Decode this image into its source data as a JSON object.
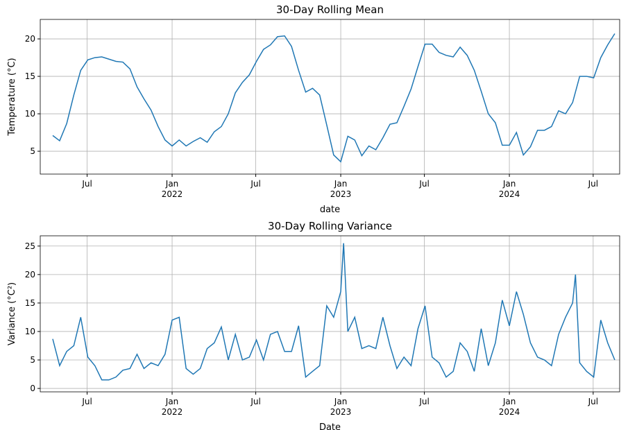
{
  "chart_data": [
    {
      "type": "line",
      "title": "30-Day Rolling Mean",
      "x_label": "date",
      "y_label": "Temperature (°C)",
      "color": "#1f77b4",
      "grid": true,
      "xlim": [
        2021.218,
        2024.654
      ],
      "ylim": [
        1.95,
        22.6
      ],
      "xticks": [
        {
          "value": 2021.496,
          "label": "Jul"
        },
        {
          "value": 2022,
          "label": "Jan\n2022"
        },
        {
          "value": 2022.496,
          "label": "Jul"
        },
        {
          "value": 2023,
          "label": "Jan\n2023"
        },
        {
          "value": 2023.496,
          "label": "Jul"
        },
        {
          "value": 2024,
          "label": "Jan\n2024"
        },
        {
          "value": 2024.497,
          "label": "Jul"
        }
      ],
      "yticks": [
        5,
        10,
        15,
        20
      ],
      "x": [
        2021.292,
        2021.333,
        2021.375,
        2021.417,
        2021.458,
        2021.5,
        2021.542,
        2021.583,
        2021.625,
        2021.667,
        2021.708,
        2021.75,
        2021.792,
        2021.833,
        2021.875,
        2021.917,
        2021.958,
        2022.0,
        2022.042,
        2022.083,
        2022.125,
        2022.167,
        2022.208,
        2022.25,
        2022.292,
        2022.333,
        2022.375,
        2022.417,
        2022.458,
        2022.5,
        2022.542,
        2022.583,
        2022.625,
        2022.667,
        2022.708,
        2022.75,
        2022.792,
        2022.833,
        2022.875,
        2022.917,
        2022.958,
        2023.0,
        2023.042,
        2023.083,
        2023.125,
        2023.167,
        2023.208,
        2023.25,
        2023.292,
        2023.333,
        2023.375,
        2023.417,
        2023.458,
        2023.5,
        2023.542,
        2023.583,
        2023.625,
        2023.667,
        2023.708,
        2023.75,
        2023.792,
        2023.833,
        2023.875,
        2023.917,
        2023.958,
        2024.0,
        2024.042,
        2024.083,
        2024.125,
        2024.167,
        2024.208,
        2024.25,
        2024.292,
        2024.333,
        2024.375,
        2024.417,
        2024.458,
        2024.5,
        2024.542,
        2024.583,
        2024.625
      ],
      "values": [
        7.1,
        6.4,
        8.7,
        12.5,
        15.8,
        17.2,
        17.5,
        17.6,
        17.3,
        17.0,
        16.9,
        16.0,
        13.6,
        12.0,
        10.5,
        8.3,
        6.5,
        5.7,
        6.5,
        5.7,
        6.3,
        6.8,
        6.2,
        7.6,
        8.3,
        10.0,
        12.8,
        14.2,
        15.2,
        17.0,
        18.6,
        19.2,
        20.3,
        20.4,
        19.0,
        15.8,
        12.9,
        13.4,
        12.5,
        8.5,
        4.5,
        3.6,
        7.0,
        6.5,
        4.4,
        5.7,
        5.2,
        6.8,
        8.6,
        8.8,
        11.0,
        13.3,
        16.3,
        19.3,
        19.3,
        18.2,
        17.8,
        17.6,
        18.9,
        17.8,
        15.8,
        13.0,
        10.0,
        8.8,
        5.8,
        5.8,
        7.5,
        4.5,
        5.6,
        7.8,
        7.8,
        8.3,
        10.4,
        10.0,
        11.5,
        15.0,
        15.0,
        14.8,
        17.5,
        19.2,
        20.7
      ]
    },
    {
      "type": "line",
      "title": "30-Day Rolling Variance",
      "x_label": "Date",
      "y_label": "Variance (°C²)",
      "color": "#1f77b4",
      "grid": true,
      "xlim": [
        2021.218,
        2024.654
      ],
      "ylim": [
        -0.6,
        26.8
      ],
      "xticks": [
        {
          "value": 2021.496,
          "label": "Jul"
        },
        {
          "value": 2022,
          "label": "Jan\n2022"
        },
        {
          "value": 2022.496,
          "label": "Jul"
        },
        {
          "value": 2023,
          "label": "Jan\n2023"
        },
        {
          "value": 2023.496,
          "label": "Jul"
        },
        {
          "value": 2024,
          "label": "Jan\n2024"
        },
        {
          "value": 2024.497,
          "label": "Jul"
        }
      ],
      "yticks": [
        0,
        5,
        10,
        15,
        20,
        25
      ],
      "x": [
        2021.292,
        2021.333,
        2021.375,
        2021.417,
        2021.458,
        2021.5,
        2021.542,
        2021.583,
        2021.625,
        2021.667,
        2021.708,
        2021.75,
        2021.792,
        2021.833,
        2021.875,
        2021.917,
        2021.958,
        2022.0,
        2022.042,
        2022.083,
        2022.125,
        2022.167,
        2022.208,
        2022.25,
        2022.292,
        2022.333,
        2022.375,
        2022.417,
        2022.458,
        2022.5,
        2022.542,
        2022.583,
        2022.625,
        2022.667,
        2022.708,
        2022.75,
        2022.792,
        2022.833,
        2022.875,
        2022.917,
        2022.958,
        2023.0,
        2023.017,
        2023.042,
        2023.083,
        2023.125,
        2023.167,
        2023.208,
        2023.25,
        2023.292,
        2023.333,
        2023.375,
        2023.417,
        2023.458,
        2023.5,
        2023.542,
        2023.583,
        2023.625,
        2023.667,
        2023.708,
        2023.75,
        2023.792,
        2023.833,
        2023.875,
        2023.917,
        2023.958,
        2024.0,
        2024.042,
        2024.083,
        2024.125,
        2024.167,
        2024.208,
        2024.25,
        2024.292,
        2024.333,
        2024.375,
        2024.392,
        2024.417,
        2024.458,
        2024.5,
        2024.542,
        2024.583,
        2024.625
      ],
      "values": [
        8.7,
        4.0,
        6.5,
        7.5,
        12.5,
        5.5,
        4.0,
        1.5,
        1.5,
        2.0,
        3.2,
        3.5,
        6.0,
        3.5,
        4.5,
        4.0,
        6.0,
        12.0,
        12.5,
        3.5,
        2.5,
        3.5,
        7.0,
        8.0,
        10.8,
        5.0,
        9.5,
        5.0,
        5.5,
        8.5,
        5.0,
        9.5,
        10.0,
        6.5,
        6.5,
        11.0,
        2.0,
        3.0,
        4.0,
        14.5,
        12.5,
        17.0,
        25.5,
        10.0,
        12.5,
        7.0,
        7.5,
        7.0,
        12.5,
        7.5,
        3.5,
        5.5,
        4.0,
        10.5,
        14.5,
        5.5,
        4.5,
        2.0,
        3.0,
        8.0,
        6.5,
        3.0,
        10.5,
        4.0,
        8.0,
        15.5,
        11.0,
        17.0,
        13.0,
        8.0,
        5.5,
        5.0,
        4.0,
        9.5,
        12.5,
        15.0,
        20.0,
        4.5,
        3.0,
        2.0,
        12.0,
        8.0,
        5.0
      ]
    }
  ]
}
